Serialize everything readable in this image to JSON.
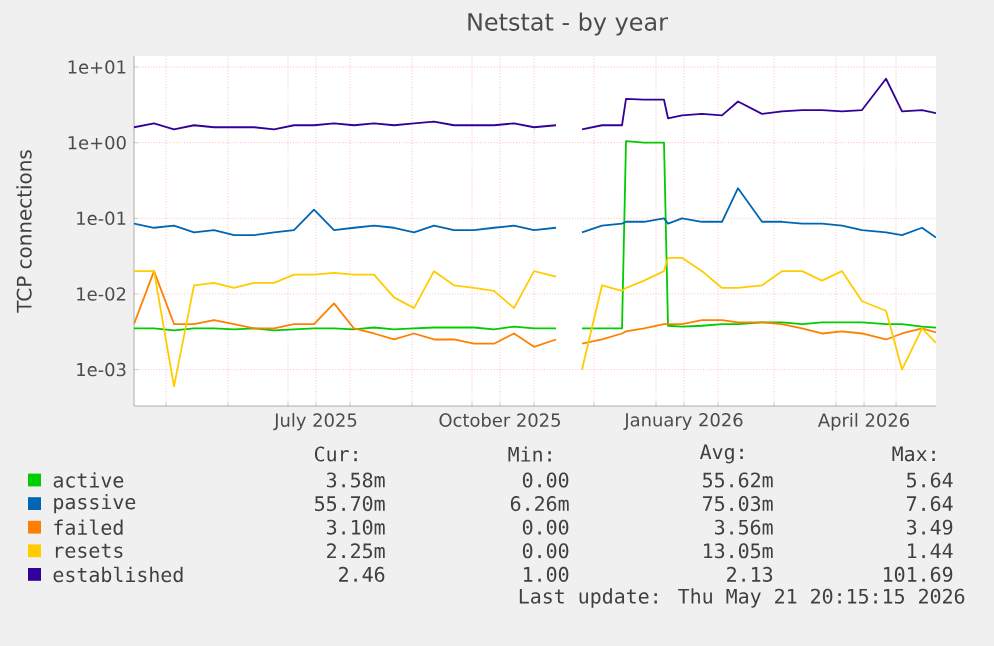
{
  "chart_data": {
    "type": "line",
    "title": "Netstat - by year",
    "ylabel": "TCP connections",
    "log": "y",
    "grid": true,
    "legend": "bottom",
    "xlim": [
      "2025-04-15",
      "2026-05-21"
    ],
    "xticks": [
      {
        "value": "2025-05-01",
        "label": null
      },
      {
        "value": "2025-06-01",
        "label": null
      },
      {
        "value": "2025-07-01",
        "label": null
      },
      {
        "value": "2025-07-15",
        "label": "July 2025"
      },
      {
        "value": "2025-08-01",
        "label": null
      },
      {
        "value": "2025-09-01",
        "label": null
      },
      {
        "value": "2025-10-01",
        "label": null
      },
      {
        "value": "2025-10-15",
        "label": "October 2025"
      },
      {
        "value": "2025-11-01",
        "label": null
      },
      {
        "value": "2025-12-01",
        "label": null
      },
      {
        "value": "2026-01-01",
        "label": null
      },
      {
        "value": "2026-01-15",
        "label": "January 2026"
      },
      {
        "value": "2026-02-01",
        "label": null
      },
      {
        "value": "2026-03-01",
        "label": null
      },
      {
        "value": "2026-04-01",
        "label": null
      },
      {
        "value": "2026-04-15",
        "label": "April 2026"
      },
      {
        "value": "2026-05-01",
        "label": null
      }
    ],
    "ylim": [
      0.00033,
      14
    ],
    "yticks": [
      {
        "value": 0.001,
        "label": "1e-03"
      },
      {
        "value": 0.01,
        "label": "1e-02"
      },
      {
        "value": 0.1,
        "label": "1e-01"
      },
      {
        "value": 1,
        "label": "1e+00"
      },
      {
        "value": 10,
        "label": "1e+01"
      }
    ],
    "x": [
      "2025-04-15",
      "2025-04-25",
      "2025-05-05",
      "2025-05-15",
      "2025-05-25",
      "2025-06-04",
      "2025-06-14",
      "2025-06-24",
      "2025-07-04",
      "2025-07-14",
      "2025-07-24",
      "2025-08-03",
      "2025-08-13",
      "2025-08-23",
      "2025-09-02",
      "2025-09-12",
      "2025-09-22",
      "2025-10-02",
      "2025-10-12",
      "2025-10-22",
      "2025-11-01",
      "2025-11-12",
      "2025-11-18",
      "2025-11-25",
      "2025-12-05",
      "2025-12-15",
      "2025-12-17",
      "2025-12-26",
      "2026-01-05",
      "2026-01-07",
      "2026-01-14",
      "2026-01-24",
      "2026-02-03",
      "2026-02-11",
      "2026-02-23",
      "2026-03-05",
      "2026-03-15",
      "2026-03-25",
      "2026-04-04",
      "2026-04-14",
      "2026-04-26",
      "2026-05-04",
      "2026-05-14",
      "2026-05-21"
    ],
    "series": [
      {
        "name": "active",
        "color": "#00cc00",
        "values": [
          0.0035,
          0.0035,
          0.0033,
          0.0035,
          0.0035,
          0.0034,
          0.0035,
          0.0033,
          0.0034,
          0.0035,
          0.0035,
          0.0034,
          0.0036,
          0.0034,
          0.0035,
          0.0036,
          0.0036,
          0.0036,
          0.0034,
          0.0037,
          0.0035,
          0.0035,
          null,
          0.0035,
          0.0035,
          0.0035,
          1.05,
          1.0,
          1.0,
          0.0038,
          0.0037,
          0.0038,
          0.004,
          0.004,
          0.0042,
          0.0042,
          0.004,
          0.0042,
          0.0042,
          0.0042,
          0.004,
          0.004,
          0.0037,
          0.00358
        ]
      },
      {
        "name": "passive",
        "color": "#0066b3",
        "values": [
          0.085,
          0.075,
          0.08,
          0.065,
          0.07,
          0.06,
          0.06,
          0.065,
          0.07,
          0.13,
          0.07,
          0.075,
          0.08,
          0.075,
          0.065,
          0.08,
          0.07,
          0.07,
          0.075,
          0.08,
          0.07,
          0.075,
          null,
          0.065,
          0.08,
          0.085,
          0.09,
          0.09,
          0.1,
          0.085,
          0.1,
          0.09,
          0.09,
          0.25,
          0.09,
          0.09,
          0.085,
          0.085,
          0.08,
          0.07,
          0.065,
          0.06,
          0.075,
          0.0557
        ]
      },
      {
        "name": "failed",
        "color": "#ff8000",
        "values": [
          0.004,
          0.02,
          0.004,
          0.004,
          0.0045,
          0.004,
          0.0035,
          0.0035,
          0.004,
          0.004,
          0.0075,
          0.0035,
          0.003,
          0.0025,
          0.003,
          0.0025,
          0.0025,
          0.0022,
          0.0022,
          0.003,
          0.002,
          0.0025,
          null,
          0.0022,
          0.0025,
          0.003,
          0.0032,
          0.0035,
          0.004,
          0.004,
          0.004,
          0.0045,
          0.0045,
          0.0042,
          0.0042,
          0.004,
          0.0035,
          0.003,
          0.0032,
          0.003,
          0.0025,
          0.003,
          0.0035,
          0.0031
        ]
      },
      {
        "name": "resets",
        "color": "#ffcc00",
        "values": [
          0.02,
          0.02,
          0.0006,
          0.013,
          0.014,
          0.012,
          0.014,
          0.014,
          0.018,
          0.018,
          0.019,
          0.018,
          0.018,
          0.009,
          0.0065,
          0.02,
          0.013,
          0.012,
          0.011,
          0.0065,
          0.02,
          0.017,
          null,
          0.001,
          0.013,
          0.011,
          0.012,
          0.015,
          0.02,
          0.03,
          0.03,
          0.02,
          0.012,
          0.012,
          0.013,
          0.02,
          0.02,
          0.015,
          0.02,
          0.008,
          0.006,
          0.001,
          0.0035,
          0.00225
        ]
      },
      {
        "name": "established",
        "color": "#330099",
        "values": [
          1.6,
          1.8,
          1.5,
          1.7,
          1.6,
          1.6,
          1.6,
          1.5,
          1.7,
          1.7,
          1.8,
          1.7,
          1.8,
          1.7,
          1.8,
          1.9,
          1.7,
          1.7,
          1.7,
          1.8,
          1.6,
          1.7,
          null,
          1.5,
          1.7,
          1.7,
          3.8,
          3.7,
          3.7,
          2.1,
          2.3,
          2.4,
          2.3,
          3.5,
          2.4,
          2.6,
          2.7,
          2.7,
          2.6,
          2.7,
          7.0,
          2.6,
          2.7,
          2.46
        ]
      }
    ],
    "annotations": [
      "Cur:",
      "Min:",
      "Avg:",
      "Max:",
      "3.58m",
      "0.00",
      "55.62m",
      "5.64",
      "55.70m",
      "6.26m",
      "75.03m",
      "7.64",
      "3.10m",
      "0.00",
      "3.56m",
      "3.49",
      "2.25m",
      "0.00",
      "13.05m",
      "1.44",
      "2.46",
      "1.00",
      "2.13",
      "101.69",
      "Last update: Thu May 21 20:15:15 2026"
    ]
  }
}
